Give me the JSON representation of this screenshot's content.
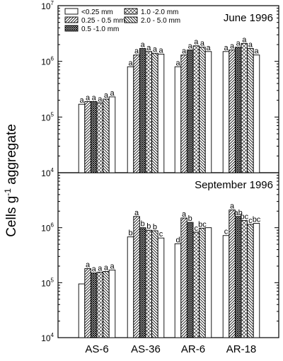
{
  "chart_data": [
    {
      "type": "bar",
      "title": "June 1996",
      "xlabel": "",
      "ylabel": "Cells g-1 aggregate",
      "yscale": "log",
      "ylim": [
        10000,
        10000000
      ],
      "yticks": [
        {
          "value": 10000,
          "base": "10",
          "exp": "4"
        },
        {
          "value": 100000,
          "base": "10",
          "exp": "5"
        },
        {
          "value": 1000000,
          "base": "10",
          "exp": "6"
        },
        {
          "value": 10000000,
          "base": "10",
          "exp": "7"
        }
      ],
      "categories": [
        "AS-6",
        "AS-36",
        "AR-6",
        "AR-18"
      ],
      "legend_position": "top-left",
      "series": [
        {
          "name": "<0.25 mm",
          "pattern": "open",
          "values": [
            170000,
            800000,
            800000,
            1500000
          ],
          "labels": [
            "a",
            "a",
            "a",
            "a"
          ]
        },
        {
          "name": "0.25 - 0.5 mm",
          "pattern": "forward-hatch",
          "values": [
            190000,
            1300000,
            1300000,
            1600000
          ],
          "labels": [
            "a",
            "a",
            "a",
            "a"
          ]
        },
        {
          "name": "0.5 -1.0 mm",
          "pattern": "crosshatch",
          "values": [
            190000,
            1700000,
            1600000,
            1800000
          ],
          "labels": [
            "a",
            "a",
            "a",
            "a"
          ]
        },
        {
          "name": "1.0 -2.0 mm",
          "pattern": "diamond",
          "values": [
            180000,
            1500000,
            1900000,
            2100000
          ],
          "labels": [
            "a",
            "a",
            "a",
            "a"
          ]
        },
        {
          "name": "2.0 - 5.0 mm",
          "pattern": "back-hatch",
          "values": [
            210000,
            1400000,
            1800000,
            1700000
          ],
          "labels": [
            "a",
            "a",
            "a",
            "a"
          ]
        },
        {
          "name": "",
          "pattern": "open",
          "values": [
            230000,
            1350000,
            1500000,
            1300000
          ],
          "labels": [
            "a",
            "a",
            "a",
            "a"
          ]
        }
      ]
    },
    {
      "type": "bar",
      "title": "September 1996",
      "xlabel": "",
      "ylabel": "Cells g-1 aggregate",
      "yscale": "log",
      "ylim": [
        10000,
        10000000
      ],
      "yticks": [
        {
          "value": 10000,
          "base": "10",
          "exp": "4"
        },
        {
          "value": 100000,
          "base": "10",
          "exp": "5"
        },
        {
          "value": 1000000,
          "base": "10",
          "exp": "6"
        }
      ],
      "categories": [
        "AS-6",
        "AS-36",
        "AR-6",
        "AR-18"
      ],
      "series": [
        {
          "name": "<0.25 mm",
          "pattern": "open",
          "values": [
            95000,
            680000,
            510000,
            720000
          ],
          "labels": [
            "",
            "b",
            "d",
            "c"
          ]
        },
        {
          "name": "0.25 - 0.5 mm",
          "pattern": "forward-hatch",
          "values": [
            180000,
            1600000,
            1500000,
            2100000
          ],
          "labels": [
            "a",
            "a",
            "a",
            "a"
          ]
        },
        {
          "name": "0.5 -1.0 mm",
          "pattern": "crosshatch",
          "values": [
            150000,
            1000000,
            1250000,
            1600000
          ],
          "labels": [
            "a",
            "b",
            "b",
            "ab"
          ]
        },
        {
          "name": "1.0 -2.0 mm",
          "pattern": "diamond",
          "values": [
            155000,
            900000,
            830000,
            1350000
          ],
          "labels": [
            "a",
            "b",
            "c",
            "bc"
          ]
        },
        {
          "name": "2.0 - 5.0 mm",
          "pattern": "back-hatch",
          "values": [
            160000,
            880000,
            980000,
            1150000
          ],
          "labels": [
            "a",
            "b",
            "bc",
            "c"
          ]
        },
        {
          "name": "",
          "pattern": "open",
          "values": [
            170000,
            650000,
            1000000,
            1200000
          ],
          "labels": [
            "a",
            "c",
            "",
            "bc"
          ]
        }
      ]
    }
  ]
}
